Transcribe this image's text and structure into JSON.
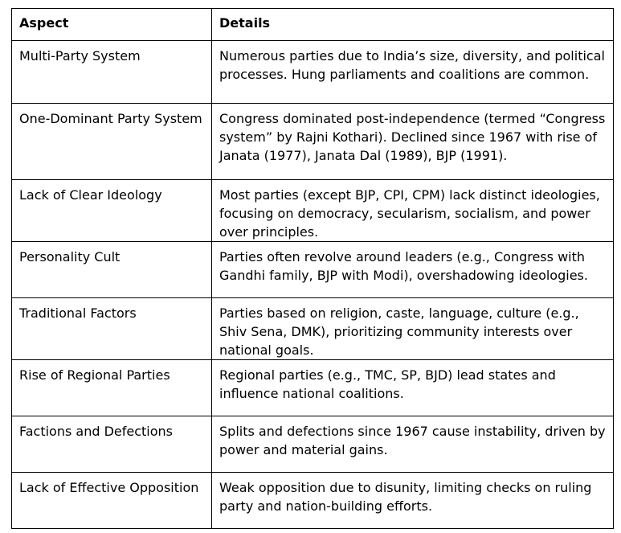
{
  "table": {
    "headers": [
      "Aspect",
      "Details"
    ],
    "rows": [
      {
        "aspect": "Multi-Party System",
        "details": "Numerous parties due to India’s size, diversity, and political processes. Hung parliaments and coalitions are common."
      },
      {
        "aspect": "One-Dominant Party System",
        "details": "Congress dominated post-independence (termed “Congress system” by Rajni Kothari). Declined since 1967 with rise of Janata (1977), Janata Dal (1989), BJP (1991)."
      },
      {
        "aspect": "Lack of Clear Ideology",
        "details": "Most parties (except BJP, CPI, CPM) lack distinct ideologies, focusing on democracy, secularism, socialism, and power over principles."
      },
      {
        "aspect": "Personality Cult",
        "details": "Parties often revolve around leaders (e.g., Congress with Gandhi family, BJP with Modi), overshadowing ideologies."
      },
      {
        "aspect": "Traditional Factors",
        "details": "Parties based on religion, caste, language, culture (e.g., Shiv Sena, DMK), prioritizing community interests over national goals."
      },
      {
        "aspect": "Rise of Regional Parties",
        "details": "Regional parties (e.g., TMC, SP, BJD) lead states and influence national coalitions."
      },
      {
        "aspect": "Factions and Defections",
        "details": "Splits and defections since 1967 cause instability, driven by power and material gains."
      },
      {
        "aspect": "Lack of Effective Opposition",
        "details": "Weak opposition due to disunity, limiting checks on ruling party and nation-building efforts."
      }
    ]
  }
}
